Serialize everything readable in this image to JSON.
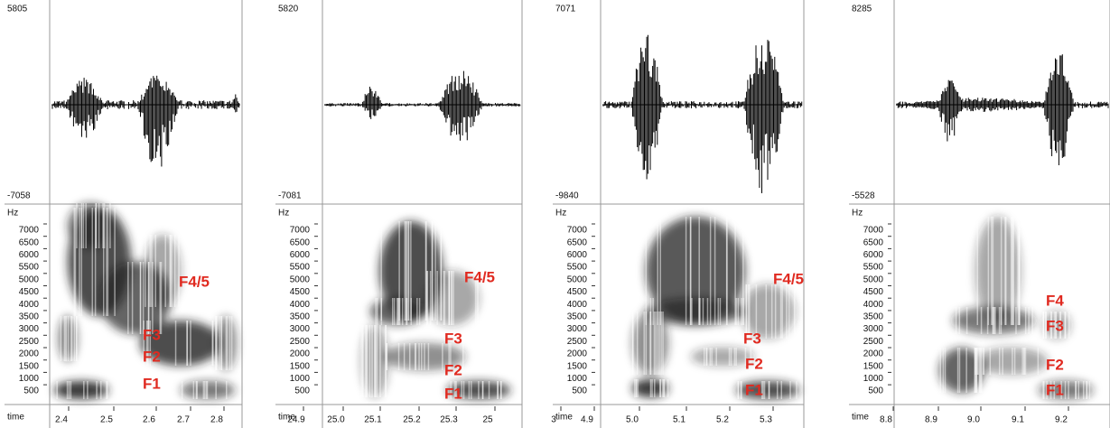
{
  "panels": [
    {
      "wave_max": "5805",
      "wave_min": "-7058",
      "hz_label": "Hz",
      "hz_ticks": [
        "7000",
        "6500",
        "6000",
        "5500",
        "5000",
        "4500",
        "4000",
        "3500",
        "3000",
        "2500",
        "2000",
        "1500",
        "1000",
        "500"
      ],
      "time_label": "time",
      "time_ticks": [
        "2.4",
        "2.5",
        "2.6",
        "2.7",
        "2.8"
      ],
      "formant_labels": [
        "F4/5",
        "F3",
        "F2",
        "F1"
      ]
    },
    {
      "wave_max": "5820",
      "wave_min": "-7081",
      "hz_label": "Hz",
      "hz_ticks": [
        "7000",
        "6500",
        "6000",
        "5500",
        "5000",
        "4500",
        "4000",
        "3500",
        "3000",
        "2500",
        "2000",
        "1500",
        "1000",
        "500"
      ],
      "time_label": "time",
      "time_ticks": [
        "24.9",
        "25.0",
        "25.1",
        "25.2",
        "25.3",
        "25"
      ],
      "formant_labels": [
        "F4/5",
        "F3",
        "F2",
        "F1"
      ]
    },
    {
      "wave_max": "7071",
      "wave_min": "-9840",
      "hz_label": "Hz",
      "hz_ticks": [
        "7000",
        "6500",
        "6000",
        "5500",
        "5000",
        "4500",
        "4000",
        "3500",
        "3000",
        "2500",
        "2000",
        "1500",
        "1000",
        "500"
      ],
      "time_label": "time",
      "time_ticks": [
        "3",
        "4.9",
        "5.0",
        "5.1",
        "5.2",
        "5.3"
      ],
      "formant_labels": [
        "F4/5",
        "F3",
        "F2",
        "F1"
      ]
    },
    {
      "wave_max": "8285",
      "wave_min": "-5528",
      "hz_label": "Hz",
      "hz_ticks": [
        "7000",
        "6500",
        "6000",
        "5500",
        "5000",
        "4500",
        "4000",
        "3500",
        "3000",
        "2500",
        "2000",
        "1500",
        "1000",
        "500"
      ],
      "time_label": "time",
      "time_ticks": [
        "8.8",
        "8.9",
        "9.0",
        "9.1",
        "9.2"
      ],
      "formant_labels": [
        "F4",
        "F3",
        "F2",
        "F1"
      ]
    }
  ]
}
